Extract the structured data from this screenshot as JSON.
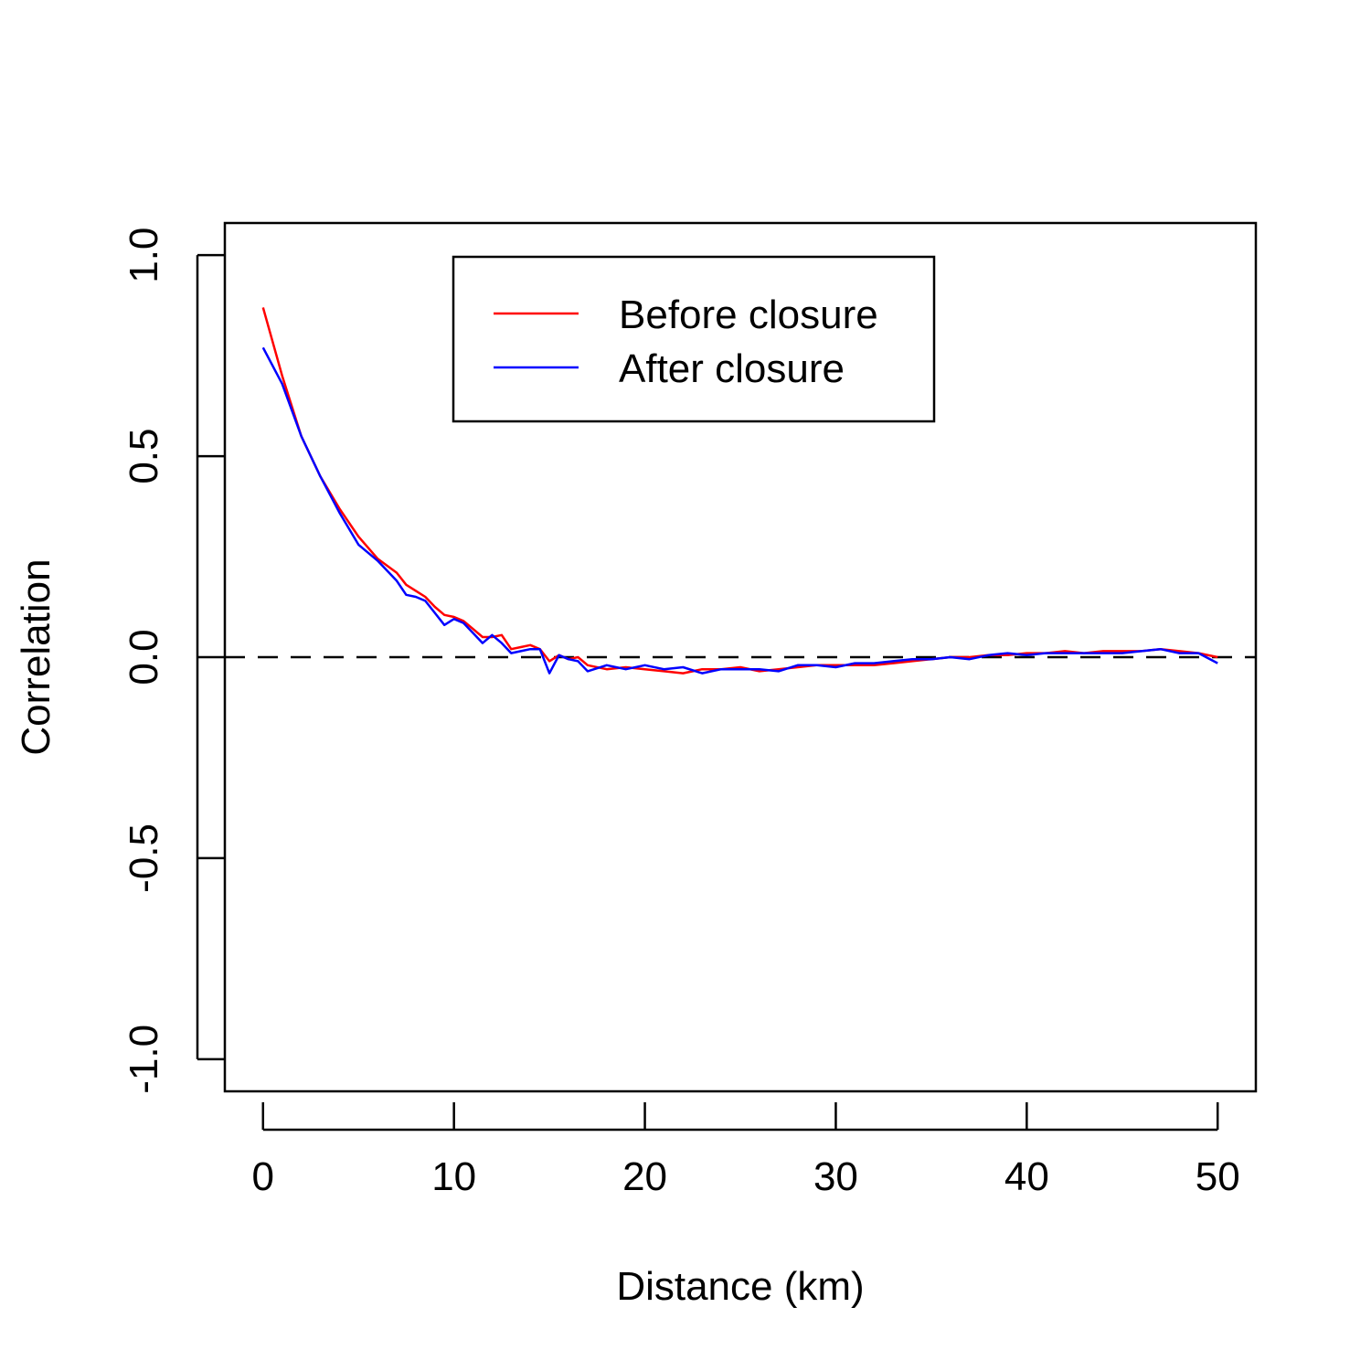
{
  "chart_data": {
    "type": "line",
    "title": "",
    "xlabel": "Distance (km)",
    "ylabel": "Correlation",
    "xlim": [
      -2,
      52
    ],
    "ylim": [
      -1.08,
      1.08
    ],
    "x_ticks": [
      0,
      10,
      20,
      30,
      40,
      50
    ],
    "x_tick_labels": [
      "0",
      "10",
      "20",
      "30",
      "40",
      "50"
    ],
    "y_ticks": [
      -1.0,
      -0.5,
      0.0,
      0.5,
      1.0
    ],
    "y_tick_labels": [
      "-1.0",
      "-0.5",
      "0.0",
      "0.5",
      "1.0"
    ],
    "grid": false,
    "legend_position": "top-center",
    "reference_line": {
      "y": 0.0,
      "style": "dashed",
      "color": "#000000"
    },
    "series": [
      {
        "name": "Before closure",
        "color": "#ff0000",
        "x": [
          0,
          1,
          2,
          3,
          4,
          5,
          6,
          7,
          7.5,
          8,
          8.5,
          9,
          9.5,
          10,
          10.5,
          11,
          11.5,
          12,
          12.5,
          13,
          13.5,
          14,
          14.5,
          15,
          15.5,
          16,
          16.5,
          17,
          18,
          19,
          20,
          21,
          22,
          23,
          24,
          25,
          26,
          27,
          28,
          29,
          30,
          31,
          32,
          33,
          34,
          35,
          36,
          37,
          38,
          39,
          40,
          41,
          42,
          43,
          44,
          45,
          46,
          47,
          48,
          49,
          50
        ],
        "y": [
          0.87,
          0.7,
          0.55,
          0.45,
          0.37,
          0.3,
          0.245,
          0.21,
          0.18,
          0.165,
          0.15,
          0.125,
          0.105,
          0.1,
          0.09,
          0.07,
          0.05,
          0.05,
          0.055,
          0.02,
          0.025,
          0.03,
          0.02,
          -0.01,
          0.005,
          -0.005,
          0.0,
          -0.02,
          -0.03,
          -0.025,
          -0.03,
          -0.035,
          -0.04,
          -0.03,
          -0.03,
          -0.025,
          -0.035,
          -0.03,
          -0.025,
          -0.02,
          -0.02,
          -0.02,
          -0.02,
          -0.015,
          -0.01,
          -0.005,
          0.0,
          0.0,
          0.005,
          0.005,
          0.01,
          0.01,
          0.015,
          0.01,
          0.015,
          0.015,
          0.015,
          0.02,
          0.015,
          0.01,
          0.0
        ]
      },
      {
        "name": "After closure",
        "color": "#0000ff",
        "x": [
          0,
          1,
          2,
          3,
          4,
          5,
          6,
          7,
          7.5,
          8,
          8.5,
          9,
          9.5,
          10,
          10.5,
          11,
          11.5,
          12,
          12.5,
          13,
          13.5,
          14,
          14.5,
          15,
          15.5,
          16,
          16.5,
          17,
          18,
          19,
          20,
          21,
          22,
          23,
          24,
          25,
          26,
          27,
          28,
          29,
          30,
          31,
          32,
          33,
          34,
          35,
          36,
          37,
          38,
          39,
          40,
          41,
          42,
          43,
          44,
          45,
          46,
          47,
          48,
          49,
          50
        ],
        "y": [
          0.77,
          0.68,
          0.55,
          0.45,
          0.36,
          0.28,
          0.24,
          0.19,
          0.155,
          0.15,
          0.14,
          0.11,
          0.08,
          0.095,
          0.085,
          0.06,
          0.035,
          0.055,
          0.035,
          0.01,
          0.015,
          0.02,
          0.02,
          -0.04,
          0.005,
          -0.005,
          -0.01,
          -0.035,
          -0.02,
          -0.03,
          -0.02,
          -0.03,
          -0.025,
          -0.04,
          -0.03,
          -0.03,
          -0.03,
          -0.035,
          -0.02,
          -0.02,
          -0.025,
          -0.015,
          -0.015,
          -0.01,
          -0.005,
          -0.005,
          0.0,
          -0.005,
          0.005,
          0.01,
          0.005,
          0.01,
          0.01,
          0.01,
          0.01,
          0.01,
          0.015,
          0.02,
          0.01,
          0.01,
          -0.015
        ]
      }
    ]
  }
}
